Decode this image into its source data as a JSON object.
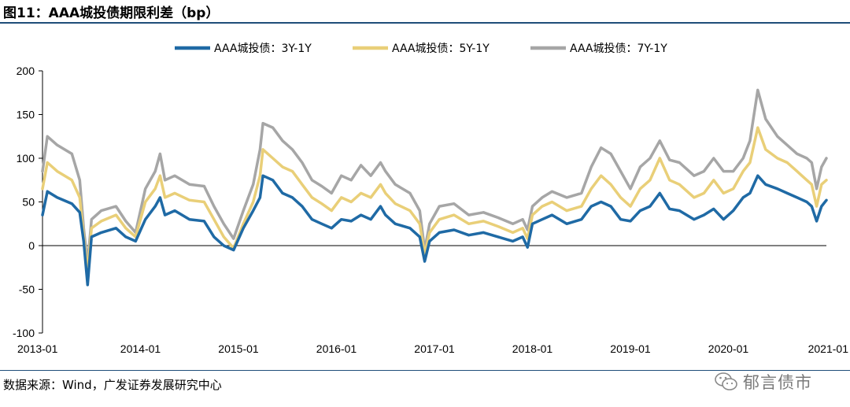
{
  "title": "图11：AAA城投债期限利差（bp）",
  "source": "数据来源：Wind，广发证券发展研究中心",
  "watermark": "郁言债市",
  "chart_data": {
    "type": "line",
    "title": "图11：AAA城投债期限利差（bp）",
    "xlabel": "",
    "ylabel": "",
    "ylim": [
      -100,
      200
    ],
    "yticks": [
      -100,
      -50,
      0,
      50,
      100,
      150,
      200
    ],
    "xlim": [
      2013.0,
      2021.0
    ],
    "xticks": [
      {
        "v": 2013.0,
        "label": "2013-01"
      },
      {
        "v": 2014.0,
        "label": "2014-01"
      },
      {
        "v": 2015.0,
        "label": "2015-01"
      },
      {
        "v": 2016.0,
        "label": "2016-01"
      },
      {
        "v": 2017.0,
        "label": "2017-01"
      },
      {
        "v": 2018.0,
        "label": "2018-01"
      },
      {
        "v": 2019.0,
        "label": "2019-01"
      },
      {
        "v": 2020.0,
        "label": "2020-01"
      },
      {
        "v": 2021.0,
        "label": "2021-01"
      }
    ],
    "grid": false,
    "legend_position": "top-center",
    "series": [
      {
        "name": "AAA城投债：3Y-1Y",
        "color": "#1f6aa5",
        "points": [
          [
            2013.0,
            35
          ],
          [
            2013.05,
            62
          ],
          [
            2013.15,
            55
          ],
          [
            2013.3,
            48
          ],
          [
            2013.38,
            38
          ],
          [
            2013.42,
            5
          ],
          [
            2013.46,
            -45
          ],
          [
            2013.5,
            10
          ],
          [
            2013.6,
            15
          ],
          [
            2013.75,
            20
          ],
          [
            2013.85,
            10
          ],
          [
            2013.95,
            5
          ],
          [
            2014.05,
            30
          ],
          [
            2014.15,
            45
          ],
          [
            2014.2,
            55
          ],
          [
            2014.25,
            35
          ],
          [
            2014.35,
            40
          ],
          [
            2014.5,
            30
          ],
          [
            2014.65,
            28
          ],
          [
            2014.75,
            10
          ],
          [
            2014.85,
            0
          ],
          [
            2014.95,
            -5
          ],
          [
            2015.05,
            20
          ],
          [
            2015.15,
            40
          ],
          [
            2015.22,
            55
          ],
          [
            2015.25,
            80
          ],
          [
            2015.35,
            75
          ],
          [
            2015.45,
            60
          ],
          [
            2015.55,
            55
          ],
          [
            2015.65,
            45
          ],
          [
            2015.75,
            30
          ],
          [
            2015.85,
            25
          ],
          [
            2015.95,
            20
          ],
          [
            2016.05,
            30
          ],
          [
            2016.15,
            28
          ],
          [
            2016.25,
            35
          ],
          [
            2016.35,
            30
          ],
          [
            2016.45,
            45
          ],
          [
            2016.5,
            35
          ],
          [
            2016.6,
            25
          ],
          [
            2016.75,
            20
          ],
          [
            2016.85,
            10
          ],
          [
            2016.9,
            -18
          ],
          [
            2016.95,
            5
          ],
          [
            2017.05,
            15
          ],
          [
            2017.2,
            18
          ],
          [
            2017.35,
            12
          ],
          [
            2017.5,
            15
          ],
          [
            2017.65,
            10
          ],
          [
            2017.8,
            5
          ],
          [
            2017.9,
            10
          ],
          [
            2017.95,
            -2
          ],
          [
            2018.0,
            25
          ],
          [
            2018.1,
            30
          ],
          [
            2018.2,
            35
          ],
          [
            2018.35,
            25
          ],
          [
            2018.5,
            30
          ],
          [
            2018.6,
            45
          ],
          [
            2018.7,
            50
          ],
          [
            2018.8,
            45
          ],
          [
            2018.9,
            30
          ],
          [
            2019.0,
            28
          ],
          [
            2019.1,
            40
          ],
          [
            2019.2,
            45
          ],
          [
            2019.3,
            60
          ],
          [
            2019.4,
            42
          ],
          [
            2019.5,
            40
          ],
          [
            2019.65,
            30
          ],
          [
            2019.75,
            35
          ],
          [
            2019.85,
            42
          ],
          [
            2019.95,
            30
          ],
          [
            2020.05,
            40
          ],
          [
            2020.15,
            55
          ],
          [
            2020.22,
            60
          ],
          [
            2020.3,
            80
          ],
          [
            2020.38,
            70
          ],
          [
            2020.5,
            65
          ],
          [
            2020.6,
            60
          ],
          [
            2020.7,
            55
          ],
          [
            2020.8,
            50
          ],
          [
            2020.85,
            45
          ],
          [
            2020.9,
            28
          ],
          [
            2020.95,
            45
          ],
          [
            2021.0,
            52
          ]
        ]
      },
      {
        "name": "AAA城投债：5Y-1Y",
        "color": "#e9cf78",
        "points": [
          [
            2013.0,
            65
          ],
          [
            2013.05,
            95
          ],
          [
            2013.15,
            85
          ],
          [
            2013.3,
            75
          ],
          [
            2013.38,
            55
          ],
          [
            2013.42,
            10
          ],
          [
            2013.46,
            -30
          ],
          [
            2013.5,
            20
          ],
          [
            2013.6,
            28
          ],
          [
            2013.75,
            35
          ],
          [
            2013.85,
            20
          ],
          [
            2013.95,
            10
          ],
          [
            2014.05,
            50
          ],
          [
            2014.15,
            65
          ],
          [
            2014.2,
            80
          ],
          [
            2014.25,
            55
          ],
          [
            2014.35,
            60
          ],
          [
            2014.5,
            52
          ],
          [
            2014.65,
            50
          ],
          [
            2014.75,
            30
          ],
          [
            2014.85,
            10
          ],
          [
            2014.95,
            -3
          ],
          [
            2015.05,
            25
          ],
          [
            2015.15,
            50
          ],
          [
            2015.22,
            80
          ],
          [
            2015.25,
            110
          ],
          [
            2015.35,
            100
          ],
          [
            2015.45,
            90
          ],
          [
            2015.55,
            85
          ],
          [
            2015.65,
            70
          ],
          [
            2015.75,
            55
          ],
          [
            2015.85,
            48
          ],
          [
            2015.95,
            40
          ],
          [
            2016.05,
            55
          ],
          [
            2016.15,
            50
          ],
          [
            2016.25,
            60
          ],
          [
            2016.35,
            55
          ],
          [
            2016.45,
            70
          ],
          [
            2016.5,
            60
          ],
          [
            2016.6,
            48
          ],
          [
            2016.75,
            40
          ],
          [
            2016.85,
            25
          ],
          [
            2016.9,
            -10
          ],
          [
            2016.95,
            15
          ],
          [
            2017.05,
            30
          ],
          [
            2017.2,
            35
          ],
          [
            2017.35,
            25
          ],
          [
            2017.5,
            28
          ],
          [
            2017.65,
            22
          ],
          [
            2017.8,
            15
          ],
          [
            2017.9,
            20
          ],
          [
            2017.95,
            8
          ],
          [
            2018.0,
            35
          ],
          [
            2018.1,
            45
          ],
          [
            2018.2,
            50
          ],
          [
            2018.35,
            40
          ],
          [
            2018.5,
            45
          ],
          [
            2018.6,
            65
          ],
          [
            2018.7,
            80
          ],
          [
            2018.8,
            70
          ],
          [
            2018.9,
            55
          ],
          [
            2019.0,
            45
          ],
          [
            2019.1,
            65
          ],
          [
            2019.2,
            75
          ],
          [
            2019.3,
            100
          ],
          [
            2019.4,
            75
          ],
          [
            2019.5,
            70
          ],
          [
            2019.65,
            55
          ],
          [
            2019.75,
            60
          ],
          [
            2019.85,
            75
          ],
          [
            2019.95,
            60
          ],
          [
            2020.05,
            65
          ],
          [
            2020.15,
            85
          ],
          [
            2020.22,
            95
          ],
          [
            2020.3,
            135
          ],
          [
            2020.38,
            110
          ],
          [
            2020.5,
            100
          ],
          [
            2020.6,
            95
          ],
          [
            2020.7,
            85
          ],
          [
            2020.8,
            75
          ],
          [
            2020.85,
            70
          ],
          [
            2020.9,
            45
          ],
          [
            2020.95,
            70
          ],
          [
            2021.0,
            75
          ]
        ]
      },
      {
        "name": "AAA城投债：7Y-1Y",
        "color": "#a6a6a6",
        "points": [
          [
            2013.0,
            85
          ],
          [
            2013.05,
            125
          ],
          [
            2013.15,
            115
          ],
          [
            2013.3,
            105
          ],
          [
            2013.38,
            75
          ],
          [
            2013.42,
            20
          ],
          [
            2013.46,
            -20
          ],
          [
            2013.5,
            30
          ],
          [
            2013.6,
            40
          ],
          [
            2013.75,
            45
          ],
          [
            2013.85,
            28
          ],
          [
            2013.95,
            15
          ],
          [
            2014.05,
            65
          ],
          [
            2014.15,
            85
          ],
          [
            2014.2,
            105
          ],
          [
            2014.25,
            75
          ],
          [
            2014.35,
            80
          ],
          [
            2014.5,
            70
          ],
          [
            2014.65,
            68
          ],
          [
            2014.75,
            45
          ],
          [
            2014.85,
            25
          ],
          [
            2014.95,
            8
          ],
          [
            2015.05,
            40
          ],
          [
            2015.15,
            70
          ],
          [
            2015.22,
            110
          ],
          [
            2015.25,
            140
          ],
          [
            2015.35,
            135
          ],
          [
            2015.45,
            120
          ],
          [
            2015.55,
            110
          ],
          [
            2015.65,
            95
          ],
          [
            2015.75,
            75
          ],
          [
            2015.85,
            68
          ],
          [
            2015.95,
            60
          ],
          [
            2016.05,
            80
          ],
          [
            2016.15,
            75
          ],
          [
            2016.25,
            92
          ],
          [
            2016.35,
            80
          ],
          [
            2016.45,
            95
          ],
          [
            2016.5,
            85
          ],
          [
            2016.6,
            70
          ],
          [
            2016.75,
            60
          ],
          [
            2016.85,
            40
          ],
          [
            2016.9,
            -5
          ],
          [
            2016.95,
            25
          ],
          [
            2017.05,
            45
          ],
          [
            2017.2,
            48
          ],
          [
            2017.35,
            35
          ],
          [
            2017.5,
            38
          ],
          [
            2017.65,
            32
          ],
          [
            2017.8,
            25
          ],
          [
            2017.9,
            30
          ],
          [
            2017.95,
            18
          ],
          [
            2018.0,
            45
          ],
          [
            2018.1,
            55
          ],
          [
            2018.2,
            62
          ],
          [
            2018.35,
            55
          ],
          [
            2018.5,
            60
          ],
          [
            2018.6,
            90
          ],
          [
            2018.7,
            112
          ],
          [
            2018.8,
            105
          ],
          [
            2018.9,
            85
          ],
          [
            2019.0,
            65
          ],
          [
            2019.1,
            90
          ],
          [
            2019.2,
            100
          ],
          [
            2019.3,
            120
          ],
          [
            2019.4,
            98
          ],
          [
            2019.5,
            95
          ],
          [
            2019.65,
            80
          ],
          [
            2019.75,
            85
          ],
          [
            2019.85,
            100
          ],
          [
            2019.95,
            85
          ],
          [
            2020.05,
            85
          ],
          [
            2020.15,
            100
          ],
          [
            2020.22,
            120
          ],
          [
            2020.3,
            178
          ],
          [
            2020.38,
            145
          ],
          [
            2020.5,
            125
          ],
          [
            2020.6,
            115
          ],
          [
            2020.7,
            105
          ],
          [
            2020.8,
            100
          ],
          [
            2020.85,
            95
          ],
          [
            2020.9,
            65
          ],
          [
            2020.95,
            90
          ],
          [
            2021.0,
            100
          ]
        ]
      }
    ]
  }
}
